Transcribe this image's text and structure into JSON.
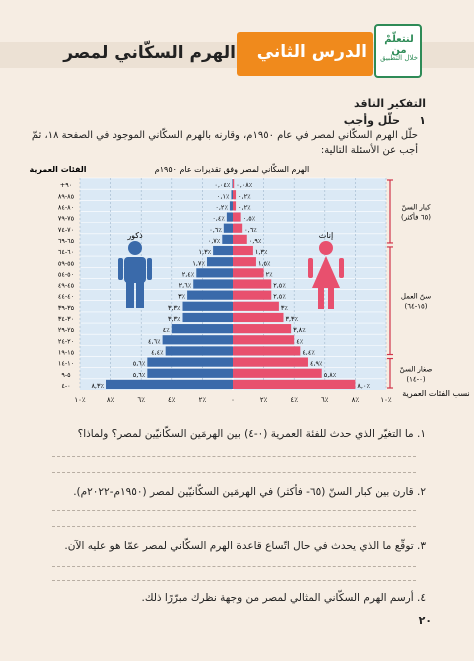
{
  "header": {
    "page_title": "الهرم السكّاني لمصر",
    "lesson_label": "الدرس الثاني",
    "logo_main": "لنتعلّمْ من",
    "logo_sub": "خلال التطبيق"
  },
  "section": {
    "heading": "التفكير الناقد",
    "item_number": "١",
    "item_title": "حلّل وأجب",
    "intro_line1": "حلّل الهرم السكّاني لمصر في عام ١٩٥٠م، وقارنه بالهرم السكّاني الموجود في الصفحة ١٨، ثمّ",
    "intro_line2": "أجب عن الأسئلة التالية:"
  },
  "chart_data": {
    "type": "bar",
    "title": "الهرم السكّاني لمصر وفق تقديرات عام ١٩٥٠م",
    "age_axis_label": "الفئات العمرية",
    "percent_axis_label": "نسب الفئات العمرية",
    "male_label": "ذكور",
    "female_label": "إناث",
    "age_groups": [
      "٠-٤",
      "٥-٩",
      "١٠-١٤",
      "١٥-١٩",
      "٢٠-٢٤",
      "٢٥-٢٩",
      "٣٠-٣٤",
      "٣٥-٣٩",
      "٤٠-٤٤",
      "٤٥-٤٩",
      "٥٠-٥٤",
      "٥٥-٥٩",
      "٦٠-٦٤",
      "٦٥-٦٩",
      "٧٠-٧٤",
      "٧٥-٧٩",
      "٨٠-٨٤",
      "٨٥-٨٩",
      "+٩٠"
    ],
    "male_values": [
      8.3,
      5.6,
      5.6,
      4.4,
      4.6,
      4.0,
      3.3,
      3.3,
      3.0,
      2.6,
      2.4,
      1.7,
      1.3,
      0.7,
      0.6,
      0.4,
      0.2,
      0.1,
      0.04
    ],
    "female_values": [
      8.0,
      5.8,
      4.9,
      4.4,
      4.0,
      3.8,
      3.3,
      3.0,
      2.5,
      2.5,
      2.0,
      1.5,
      1.3,
      0.9,
      0.6,
      0.5,
      0.2,
      0.2,
      0.08
    ],
    "male_labels": [
      "٨,٣٪",
      "٥,٦٪",
      "٥,٦٪",
      "٤,٤٪",
      "٤,٦٪",
      "٤٪",
      "٣,٣٪",
      "٣,٣٪",
      "٣٪",
      "٢,٦٪",
      "٢,٤٪",
      "١,٧٪",
      "١,٣٪",
      "٠,٧٪",
      "٠,٦٪",
      "٠,٤٪",
      "٠,٢٪",
      "٠,١٪",
      "٠,٠٤٪"
    ],
    "female_labels": [
      "٨,٠٪",
      "٥,٨٪",
      "٤,٩٪",
      "٤,٤٪",
      "٤٪",
      "٣,٨٪",
      "٣,٣٪",
      "٣٪",
      "٢,٥٪",
      "٢,٥٪",
      "٢٪",
      "١,٥٪",
      "١,٣٪",
      "٠,٩٪",
      "٠,٦٪",
      "٠,٥٪",
      "٠,٢٪",
      "٠,٢٪",
      "٠,٠٨٪"
    ],
    "x_ticks": [
      "١٠٪",
      "٨٪",
      "٦٪",
      "٤٪",
      "٢٪",
      "٠",
      "٢٪",
      "٤٪",
      "٦٪",
      "٨٪",
      "١٠٪"
    ],
    "xlim": [
      -10,
      10
    ],
    "male_color": "#3a6aaa",
    "female_color": "#e8506e",
    "groups": [
      {
        "label": "كبار السنّ",
        "sublabel": "(٦٥ فأكثر)",
        "range": [
          "٦٥-٦٩",
          "+٩٠"
        ]
      },
      {
        "label": "سنّ العمل",
        "sublabel": "(١٥-٦٤)",
        "range": [
          "١٥-١٩",
          "٦٠-٦٤"
        ]
      },
      {
        "label": "صغار السنّ",
        "sublabel": "(٠-١٤)",
        "range": [
          "٠-٤",
          "١٠-١٤"
        ]
      }
    ]
  },
  "questions": [
    "١. ما التغيّر الذي حدث للفئة العمرية (٠-٤) بين الهرمَين السكّانيّين لمصر؟ ولماذا؟",
    "٢. قارن بين كبار السنّ (٦٥- فأكثر) في الهرمَين السكّانيّين لمصر (١٩٥٠م-٢٠٢٢م).",
    "٣. توقّع ما الذي يحدث في حال اتّساع قاعدة الهرم السكّاني لمصر عمّا هو عليه الآن.",
    "٤. أرسم الهرم السكّاني المثالي لمصر من وجهة نظرك مبرّرًا ذلك."
  ],
  "page_number": "٢٠"
}
